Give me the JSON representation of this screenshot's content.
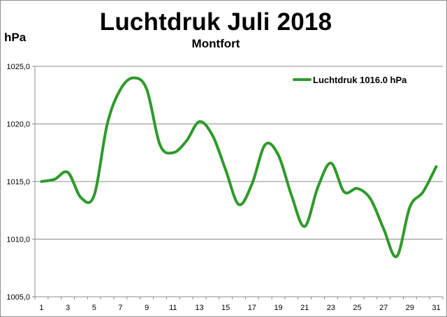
{
  "chart_data": {
    "type": "line",
    "title": "Luchtdruk Juli 2018",
    "subtitle": "Montfort",
    "ylabel": "hPa",
    "xlabel": "",
    "ylim": [
      1005,
      1025
    ],
    "yticks": [
      1005,
      1010,
      1015,
      1020,
      1025
    ],
    "ytick_labels": [
      "1005,0",
      "1010,0",
      "1015,0",
      "1020,0",
      "1025,0"
    ],
    "xticks": [
      1,
      3,
      5,
      7,
      9,
      11,
      13,
      15,
      17,
      19,
      21,
      23,
      25,
      27,
      29,
      31
    ],
    "xlim": [
      1,
      31
    ],
    "grid": "horizontal",
    "legend_position": "top-right",
    "series": [
      {
        "name": "Luchtdruk 1016.0 hPa",
        "color": "#2e9a2a",
        "x": [
          1,
          2,
          3,
          4,
          5,
          6,
          7,
          8,
          9,
          10,
          11,
          12,
          13,
          14,
          15,
          16,
          17,
          18,
          19,
          20,
          21,
          22,
          23,
          24,
          25,
          26,
          27,
          28,
          29,
          30,
          31
        ],
        "values": [
          1015.0,
          1015.2,
          1015.8,
          1013.6,
          1013.8,
          1020.0,
          1023.0,
          1024.0,
          1023.0,
          1018.2,
          1017.5,
          1018.5,
          1020.2,
          1019.0,
          1016.0,
          1013.0,
          1014.8,
          1018.2,
          1017.3,
          1013.8,
          1011.1,
          1014.5,
          1016.6,
          1014.1,
          1014.4,
          1013.5,
          1010.9,
          1008.5,
          1012.8,
          1014.1,
          1016.3
        ]
      }
    ]
  }
}
